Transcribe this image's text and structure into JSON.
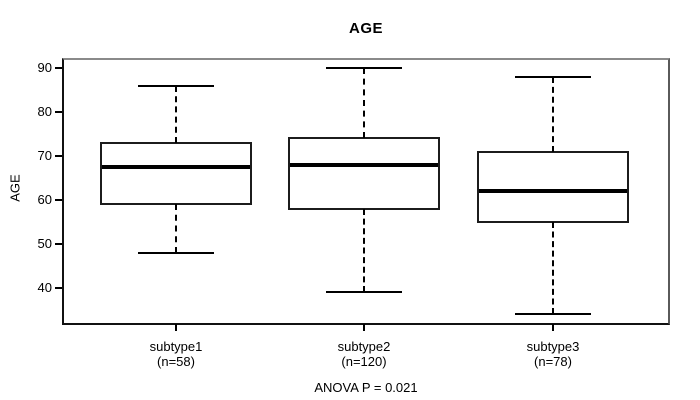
{
  "figure": {
    "background": "#ffffff",
    "line_color": "#000000"
  },
  "chart_data": {
    "type": "boxplot",
    "title": "AGE",
    "xlabel": "",
    "ylabel": "AGE",
    "annotation": "ANOVA P = 0.021",
    "ylim": [
      33,
      91
    ],
    "yticks": [
      90,
      80,
      70,
      60,
      50,
      40
    ],
    "grid": false,
    "legend": false,
    "groups": [
      {
        "label": "subtype1",
        "sublabel": "(n=58)",
        "n": 58,
        "min": 48,
        "q1": 59,
        "median": 67.5,
        "q3": 73,
        "max": 86
      },
      {
        "label": "subtype2",
        "sublabel": "(n=120)",
        "n": 120,
        "min": 39,
        "q1": 58,
        "median": 68,
        "q3": 74,
        "max": 90
      },
      {
        "label": "subtype3",
        "sublabel": "(n=78)",
        "n": 78,
        "min": 34,
        "q1": 55,
        "median": 62,
        "q3": 71,
        "max": 88
      }
    ]
  }
}
